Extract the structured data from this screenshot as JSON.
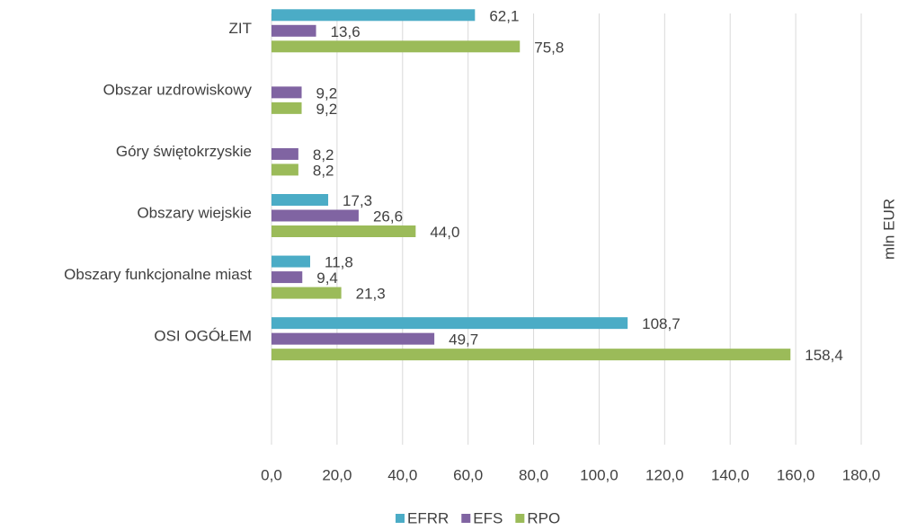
{
  "chart_data": {
    "type": "hbar",
    "axis_label": "mln EUR",
    "categories": [
      "ZIT",
      "Obszar uzdrowiskowy",
      "Góry świętokrzyskie",
      "Obszary wiejskie",
      "Obszary funkcjonalne miast",
      "OSI OGÓŁEM",
      null
    ],
    "series": [
      {
        "name": "EFRR",
        "color": "#4bacc6",
        "values": [
          62.1,
          null,
          null,
          17.3,
          11.8,
          108.7,
          null
        ],
        "value_labels": [
          "62,1",
          null,
          null,
          "17,3",
          "11,8",
          "108,7",
          null
        ]
      },
      {
        "name": "EFS",
        "color": "#8064a2",
        "values": [
          13.6,
          9.2,
          8.2,
          26.6,
          9.4,
          49.7,
          null
        ],
        "value_labels": [
          "13,6",
          "9,2",
          "8,2",
          "26,6",
          "9,4",
          "49,7",
          null
        ]
      },
      {
        "name": "RPO",
        "color": "#9bbb59",
        "values": [
          75.8,
          9.2,
          8.2,
          44.0,
          21.3,
          158.4,
          null
        ],
        "value_labels": [
          "75,8",
          "9,2",
          "8,2",
          "44,0",
          "21,3",
          "158,4",
          null
        ]
      }
    ],
    "xlim": [
      0,
      180
    ],
    "xticks": [
      {
        "value": 0,
        "label": "0,0"
      },
      {
        "value": 20,
        "label": "20,0"
      },
      {
        "value": 40,
        "label": "40,0"
      },
      {
        "value": 60,
        "label": "60,0"
      },
      {
        "value": 80,
        "label": "80,0"
      },
      {
        "value": 100,
        "label": "100,0"
      },
      {
        "value": 120,
        "label": "120,0"
      },
      {
        "value": 140,
        "label": "140,0"
      },
      {
        "value": 160,
        "label": "160,0"
      },
      {
        "value": 180,
        "label": "180,0"
      }
    ],
    "grid": true,
    "legend": "bottom"
  }
}
